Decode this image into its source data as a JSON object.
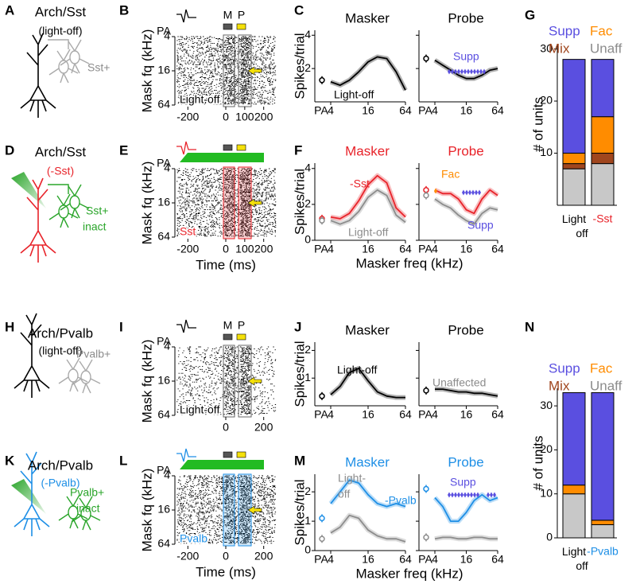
{
  "panel_letters": [
    "A",
    "B",
    "C",
    "G",
    "D",
    "E",
    "F",
    "H",
    "I",
    "J",
    "N",
    "K",
    "L",
    "M"
  ],
  "schematics": [
    {
      "title": "Arch/Sst",
      "condition": "(light-off)",
      "condition_color": "#000000",
      "cell": "Sst+",
      "cell_color": "#8c8c8c"
    },
    {
      "title": "Arch/Sst",
      "condition": "(-Sst)",
      "condition_color": "#e8232a",
      "cell": "Sst+",
      "state": "inact",
      "cell_color": "#2aa52a"
    },
    {
      "title": "Arch/Pvalb",
      "condition": "(light-off)",
      "condition_color": "#000000",
      "cell": "Pvalb+",
      "cell_color": "#8c8c8c"
    },
    {
      "title": "Arch/Pvalb",
      "condition": "(-Pvalb)",
      "condition_color": "#1e8fe6",
      "cell": "Pvalb+",
      "state": "inact",
      "cell_color": "#2aa52a"
    }
  ],
  "chart_data": [
    {
      "type": "raster",
      "ylabel": "Mask fq (kHz)",
      "stimulus_label": "PA",
      "markers": [
        "M",
        "P"
      ],
      "annotation": "Light-off",
      "color": "#000000",
      "light_bar": false,
      "xlim": [
        -260,
        260
      ],
      "xticks": [
        -200,
        0,
        100,
        200
      ],
      "ylim": [
        4,
        64
      ],
      "yticks": [
        4,
        16,
        64
      ],
      "log_y": true
    },
    {
      "type": "raster",
      "ylabel": "Mask fq (kHz)",
      "stimulus_label": "PA",
      "xlabel": "Time (ms)",
      "annotation": "Sst",
      "color": "#e8232a",
      "light_bar": true,
      "xlim": [
        -260,
        260
      ],
      "xticks": [
        -200,
        0,
        100,
        200
      ],
      "ylim": [
        4,
        64
      ],
      "yticks": [
        4,
        16,
        64
      ],
      "log_y": true
    },
    {
      "type": "raster",
      "ylabel": "Mask fq (kHz)",
      "stimulus_label": "PA",
      "markers": [
        "M",
        "P"
      ],
      "annotation": "Light-off",
      "color": "#000000",
      "light_bar": false,
      "xlim": [
        -260,
        260
      ],
      "xticks": [
        0,
        200
      ],
      "ylim": [
        4,
        64
      ],
      "yticks": [
        4,
        16,
        64
      ],
      "log_y": true
    },
    {
      "type": "raster",
      "ylabel": "Mask fq (kHz)",
      "stimulus_label": "PA",
      "xlabel": "Time (ms)",
      "annotation": "Pvalb",
      "color": "#1e8fe6",
      "light_bar": true,
      "xlim": [
        -260,
        260
      ],
      "xticks": [
        -200,
        0,
        200
      ],
      "ylim": [
        4,
        64
      ],
      "yticks": [
        4,
        16,
        64
      ],
      "log_y": true
    },
    {
      "type": "line",
      "ylabel": "Spikes/trial",
      "stimulus_label": "PA",
      "xlim": [
        4,
        64
      ],
      "xticks": [
        4,
        16,
        64
      ],
      "log_x": true,
      "ylim": [
        0,
        4.3
      ],
      "yticks": [
        2,
        4
      ],
      "x": [
        4,
        5.66,
        8,
        11.3,
        16,
        22.6,
        32,
        45.3,
        64
      ],
      "subplots": [
        {
          "title": "Masker",
          "title_color": "#000000",
          "series": [
            {
              "color": "#000000",
              "values": [
                1.2,
                1.0,
                1.3,
                1.8,
                2.4,
                2.7,
                2.6,
                1.8,
                0.7
              ],
              "pa": 1.3
            }
          ],
          "annotations": [
            {
              "text": "Light-off",
              "color": "#000000"
            }
          ]
        },
        {
          "title": "Probe",
          "title_color": "#000000",
          "series": [
            {
              "color": "#000000",
              "values": [
                2.5,
                2.2,
                1.9,
                1.6,
                1.4,
                1.4,
                1.6,
                1.9,
                2.0
              ],
              "pa": 2.6
            }
          ],
          "annotations": [
            {
              "text": "Supp",
              "color": "#5a4fe0"
            }
          ]
        }
      ]
    },
    {
      "type": "line",
      "ylabel": "Spikes/trial",
      "stimulus_label": "PA",
      "xlabel": "Masker freq (kHz)",
      "xlim": [
        4,
        64
      ],
      "xticks": [
        4,
        16,
        64
      ],
      "log_x": true,
      "ylim": [
        0,
        4.3
      ],
      "yticks": [
        0,
        2,
        4
      ],
      "x": [
        4,
        5.66,
        8,
        11.3,
        16,
        22.6,
        32,
        45.3,
        64
      ],
      "subplots": [
        {
          "title": "Masker",
          "title_color": "#e8232a",
          "series": [
            {
              "color": "#e8232a",
              "values": [
                1.3,
                1.2,
                1.5,
                2.2,
                3.1,
                3.6,
                3.2,
                1.8,
                1.3
              ],
              "pa": 1.2
            },
            {
              "color": "#8c8c8c",
              "values": [
                1.1,
                0.9,
                1.1,
                1.6,
                2.4,
                2.8,
                2.5,
                1.4,
                1.0
              ],
              "pa": 1.1
            }
          ],
          "annotations": [
            {
              "text": "-Sst",
              "color": "#e8232a"
            },
            {
              "text": "Light-off",
              "color": "#8c8c8c"
            }
          ]
        },
        {
          "title": "Probe",
          "title_color": "#e8232a",
          "series": [
            {
              "color": "#e8232a",
              "values": [
                2.8,
                2.6,
                2.6,
                2.3,
                1.7,
                1.5,
                2.3,
                2.8,
                2.5
              ],
              "pa": 2.8
            },
            {
              "color": "#8c8c8c",
              "values": [
                2.3,
                2.0,
                1.8,
                1.4,
                1.1,
                0.9,
                1.5,
                1.8,
                1.7
              ],
              "pa": 2.5
            }
          ],
          "annotations": [
            {
              "text": "Fac",
              "color": "#ff8c00"
            },
            {
              "text": "Supp",
              "color": "#5a4fe0"
            }
          ]
        }
      ]
    },
    {
      "type": "line",
      "ylabel": "Spikes/trial",
      "stimulus_label": "PA",
      "xlim": [
        4,
        64
      ],
      "xticks": [
        4,
        16,
        64
      ],
      "log_x": true,
      "ylim": [
        0,
        2.3
      ],
      "yticks": [
        1,
        2
      ],
      "x": [
        4,
        5.66,
        8,
        11.3,
        16,
        22.6,
        32,
        45.3,
        64
      ],
      "subplots": [
        {
          "title": "Masker",
          "title_color": "#000000",
          "series": [
            {
              "color": "#000000",
              "values": [
                0.4,
                0.7,
                1.2,
                1.35,
                0.9,
                0.5,
                0.35,
                0.3,
                0.3
              ],
              "pa": 0.35
            }
          ],
          "annotations": [
            {
              "text": "Light-off",
              "color": "#000000"
            }
          ]
        },
        {
          "title": "Probe",
          "title_color": "#000000",
          "series": [
            {
              "color": "#000000",
              "values": [
                0.6,
                0.6,
                0.55,
                0.5,
                0.5,
                0.45,
                0.45,
                0.4,
                0.35
              ],
              "pa": 0.55
            }
          ],
          "annotations": [
            {
              "text": "Unaffected",
              "color": "#8c8c8c"
            }
          ]
        }
      ]
    },
    {
      "type": "line",
      "ylabel": "Spikes/trial",
      "stimulus_label": "PA",
      "xlabel": "Masker freq (kHz)",
      "xlim": [
        4,
        64
      ],
      "xticks": [
        4,
        16,
        64
      ],
      "log_x": true,
      "ylim": [
        0,
        2.6
      ],
      "yticks": [
        0,
        1,
        2
      ],
      "x": [
        4,
        5.66,
        8,
        11.3,
        16,
        22.6,
        32,
        45.3,
        64
      ],
      "subplots": [
        {
          "title": "Masker",
          "title_color": "#1e8fe6",
          "series": [
            {
              "color": "#1e8fe6",
              "values": [
                1.6,
                2.0,
                2.4,
                2.3,
                1.9,
                1.6,
                1.5,
                1.6,
                1.5
              ],
              "pa": 1.1
            },
            {
              "color": "#8c8c8c",
              "values": [
                0.6,
                0.8,
                1.2,
                1.1,
                0.7,
                0.5,
                0.4,
                0.4,
                0.3
              ],
              "pa": 0.4
            }
          ],
          "annotations": [
            {
              "text": "Light-",
              "color": "#8c8c8c"
            },
            {
              "text": "off",
              "color": "#8c8c8c"
            },
            {
              "text": "-Pvalb",
              "color": "#1e8fe6"
            }
          ]
        },
        {
          "title": "Probe",
          "title_color": "#1e8fe6",
          "series": [
            {
              "color": "#1e8fe6",
              "values": [
                1.8,
                1.5,
                1.0,
                1.0,
                1.3,
                1.7,
                1.9,
                1.7,
                1.8
              ],
              "pa": 2.1
            },
            {
              "color": "#8c8c8c",
              "values": [
                0.4,
                0.45,
                0.45,
                0.4,
                0.4,
                0.45,
                0.45,
                0.4,
                0.4
              ],
              "pa": 0.45
            }
          ],
          "annotations": [
            {
              "text": "Supp",
              "color": "#5a4fe0"
            }
          ]
        }
      ]
    },
    {
      "type": "stacked_bar",
      "ylabel": "# of units",
      "categories": [
        "Light off",
        "-Sst"
      ],
      "category_colors": [
        "#000000",
        "#e8232a"
      ],
      "ylim": [
        0,
        31
      ],
      "yticks": [
        10,
        20,
        30
      ],
      "series": [
        {
          "name": "Supp",
          "color": "#5a4fe0",
          "values": [
            18,
            11
          ]
        },
        {
          "name": "Fac",
          "color": "#ff8c00",
          "values": [
            2,
            7
          ]
        },
        {
          "name": "Mix",
          "color": "#a0461e",
          "values": [
            1,
            2
          ]
        },
        {
          "name": "Unaff",
          "color": "#c8c8c8",
          "values": [
            7,
            8
          ]
        }
      ]
    },
    {
      "type": "stacked_bar",
      "ylabel": "# of units",
      "categories": [
        "Light off",
        "-Pvalb"
      ],
      "category_colors": [
        "#000000",
        "#1e8fe6"
      ],
      "ylim": [
        0,
        34
      ],
      "yticks": [
        0,
        10,
        20,
        30
      ],
      "series": [
        {
          "name": "Supp",
          "color": "#5a4fe0",
          "values": [
            21,
            29
          ]
        },
        {
          "name": "Fac",
          "color": "#ff8c00",
          "values": [
            2,
            1
          ]
        },
        {
          "name": "Mix",
          "color": "#a0461e",
          "values": [
            0,
            0
          ]
        },
        {
          "name": "Unaff",
          "color": "#c8c8c8",
          "values": [
            10,
            3
          ]
        }
      ]
    }
  ]
}
